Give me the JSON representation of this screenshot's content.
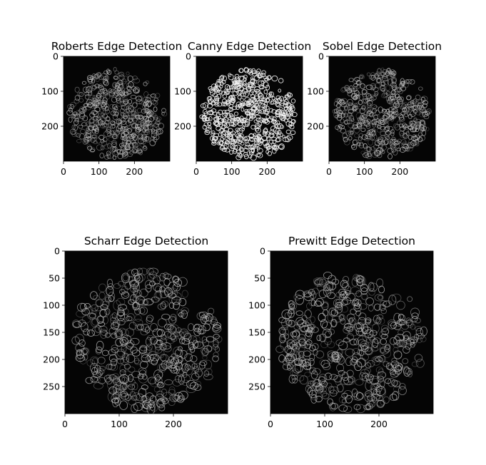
{
  "chart_data": [
    {
      "type": "image",
      "title": "Roberts Edge Detection",
      "x_ticks": [
        0,
        100,
        200
      ],
      "y_ticks": [
        0,
        100,
        200
      ],
      "xlim": [
        0,
        300
      ],
      "ylim": [
        300,
        0
      ],
      "colormap": "gray",
      "edge_style": "soft"
    },
    {
      "type": "image",
      "title": "Canny Edge Detection",
      "x_ticks": [
        0,
        100,
        200
      ],
      "y_ticks": [
        0,
        100,
        200
      ],
      "xlim": [
        0,
        300
      ],
      "ylim": [
        300,
        0
      ],
      "colormap": "gray",
      "edge_style": "binary"
    },
    {
      "type": "image",
      "title": "Sobel Edge Detection",
      "x_ticks": [
        0,
        100,
        200
      ],
      "y_ticks": [
        0,
        100,
        200
      ],
      "xlim": [
        0,
        300
      ],
      "ylim": [
        300,
        0
      ],
      "colormap": "gray",
      "edge_style": "soft"
    },
    {
      "type": "image",
      "title": "Scharr Edge Detection",
      "x_ticks": [
        0,
        100,
        200
      ],
      "y_ticks": [
        0,
        50,
        100,
        150,
        200,
        250
      ],
      "xlim": [
        0,
        300
      ],
      "ylim": [
        300,
        0
      ],
      "colormap": "gray",
      "edge_style": "soft"
    },
    {
      "type": "image",
      "title": "Prewitt Edge Detection",
      "x_ticks": [
        0,
        100,
        200
      ],
      "y_ticks": [
        0,
        50,
        100,
        150,
        200,
        250
      ],
      "xlim": [
        0,
        300
      ],
      "ylim": [
        300,
        0
      ],
      "colormap": "gray",
      "edge_style": "soft"
    }
  ],
  "colors": {
    "background": "#ffffff",
    "image_background": "#050505",
    "edge_soft": "#c8c8c8",
    "edge_binary": "#f0f0f0",
    "axis": "#000000"
  }
}
